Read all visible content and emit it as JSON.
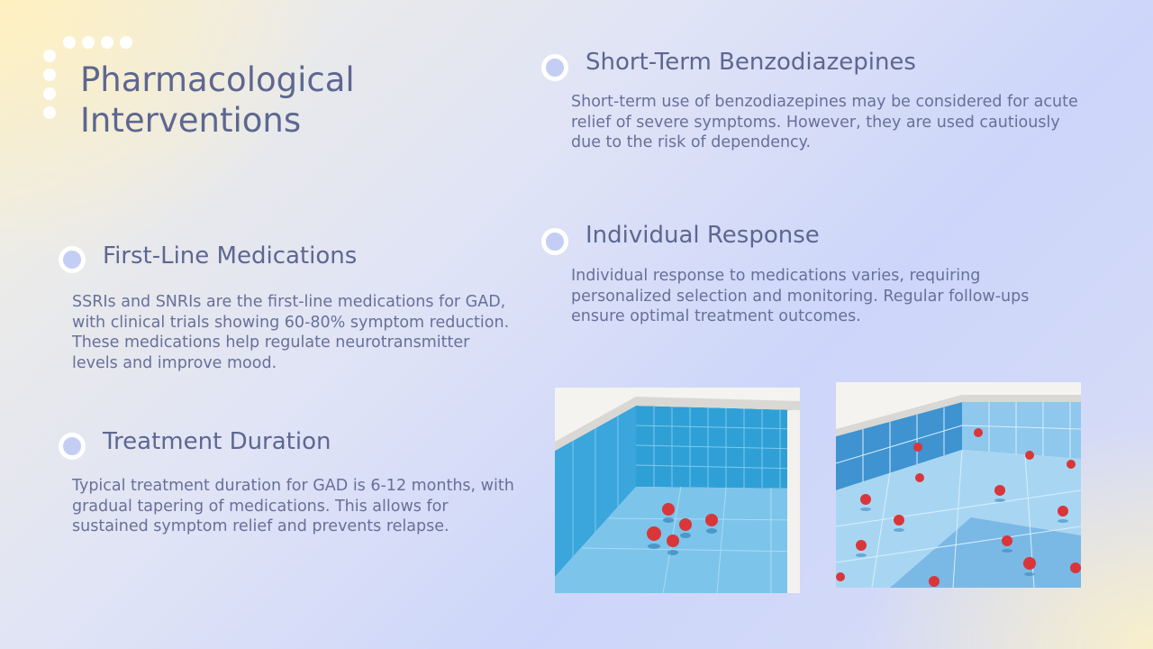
{
  "title": "Pharmacological Interventions",
  "sections": [
    {
      "heading": "First-Line Medications",
      "text": "SSRIs and SNRIs are the first-line medications for GAD, with clinical trials showing 60-80% symptom reduction. These medications help regulate neurotransmitter levels and improve mood."
    },
    {
      "heading": "Treatment Duration",
      "text": "Typical treatment duration for GAD is 6-12 months, with gradual tapering of medications. This allows for sustained symptom relief and prevents relapse."
    },
    {
      "heading": "Short-Term Benzodiazepines",
      "text": "Short-term use of benzodiazepines may be considered for acute relief of severe symptoms. However, they are used cautiously due to the risk of dependency."
    },
    {
      "heading": "Individual Response",
      "text": "Individual response to medications varies, requiring personalized selection and monitoring. Regular follow-ups ensure optimal treatment outcomes."
    }
  ],
  "images": [
    {
      "name": "pool-strawberries-illustration-1"
    },
    {
      "name": "pool-strawberries-illustration-2"
    }
  ]
}
